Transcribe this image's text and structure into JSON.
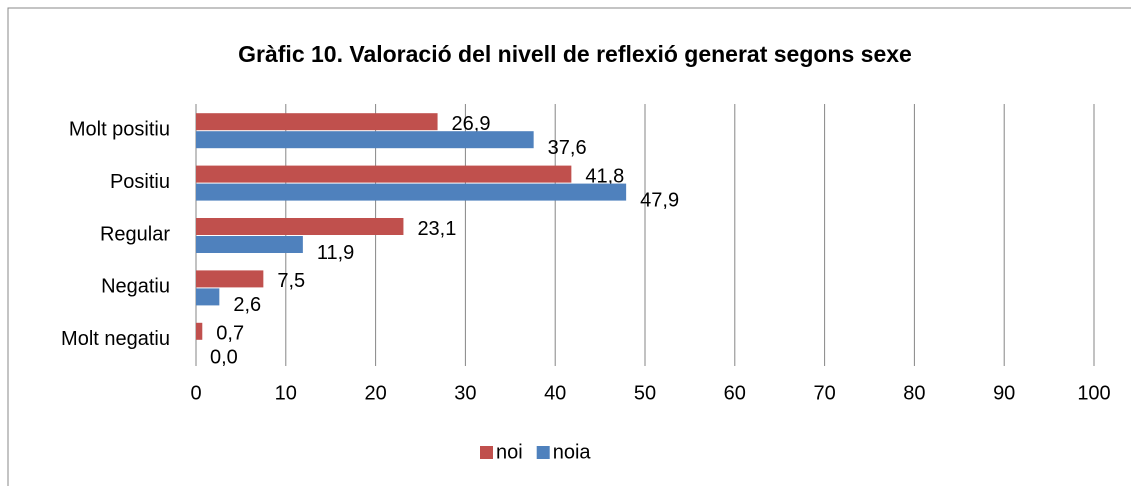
{
  "chart_data": {
    "type": "bar",
    "orientation": "horizontal",
    "title": "Gràfic 10. Valoració del nivell de reflexió generat segons sexe",
    "categories": [
      "Molt positiu",
      "Positiu",
      "Regular",
      "Negatiu",
      "Molt negatiu"
    ],
    "series": [
      {
        "name": "noi",
        "color": "#c0504d",
        "values": [
          26.9,
          41.8,
          23.1,
          7.5,
          0.7
        ],
        "value_labels": [
          "26,9",
          "41,8",
          "23,1",
          "7,5",
          "0,7"
        ]
      },
      {
        "name": "noia",
        "color": "#4f81bd",
        "values": [
          37.6,
          47.9,
          11.9,
          2.6,
          0.0
        ],
        "value_labels": [
          "37,6",
          "47,9",
          "11,9",
          "2,6",
          "0,0"
        ]
      }
    ],
    "xlim": [
      0,
      100
    ],
    "xticks": [
      0,
      10,
      20,
      30,
      40,
      50,
      60,
      70,
      80,
      90,
      100
    ],
    "grid": true,
    "legend": "bottom"
  }
}
